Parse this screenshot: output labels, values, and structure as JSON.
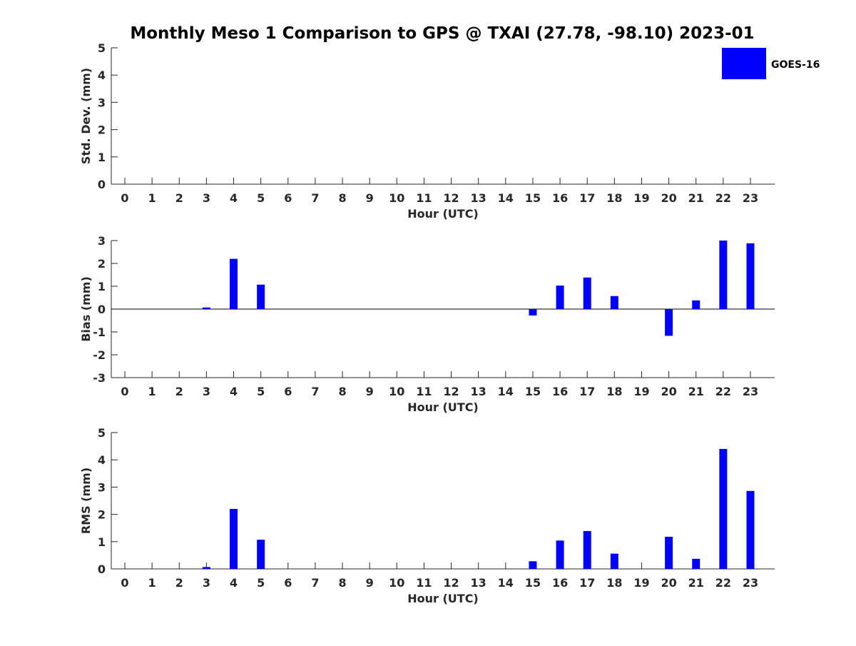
{
  "title": "Monthly Meso 1 Comparison to GPS @ TXAI (27.78, -98.10) 2023-01",
  "colors": {
    "bar": "#0000ff",
    "axis": "#262626",
    "background": "#ffffff"
  },
  "legend": {
    "label": "GOES-16",
    "placement": "top-right"
  },
  "chart_data": [
    {
      "type": "bar",
      "xlabel": "Hour (UTC)",
      "ylabel": "Std. Dev. (mm)",
      "categories": [
        "0",
        "1",
        "2",
        "3",
        "4",
        "5",
        "6",
        "7",
        "8",
        "9",
        "10",
        "11",
        "12",
        "13",
        "14",
        "15",
        "16",
        "17",
        "18",
        "19",
        "20",
        "21",
        "22",
        "23"
      ],
      "ylim": [
        0,
        5
      ],
      "yticks": [
        "0",
        "1",
        "2",
        "3",
        "4",
        "5"
      ],
      "grid": false,
      "series": [
        {
          "name": "GOES-16",
          "values": [
            null,
            null,
            null,
            null,
            null,
            null,
            null,
            null,
            null,
            null,
            null,
            null,
            null,
            null,
            null,
            null,
            null,
            null,
            null,
            null,
            null,
            null,
            null,
            null
          ]
        }
      ]
    },
    {
      "type": "bar",
      "xlabel": "Hour (UTC)",
      "ylabel": "Bias (mm)",
      "categories": [
        "0",
        "1",
        "2",
        "3",
        "4",
        "5",
        "6",
        "7",
        "8",
        "9",
        "10",
        "11",
        "12",
        "13",
        "14",
        "15",
        "16",
        "17",
        "18",
        "19",
        "20",
        "21",
        "22",
        "23"
      ],
      "ylim": [
        -3,
        3
      ],
      "yticks": [
        "-3",
        "-2",
        "-1",
        "0",
        "1",
        "2",
        "3"
      ],
      "grid": false,
      "zero_line": true,
      "series": [
        {
          "name": "GOES-16",
          "values": [
            null,
            null,
            null,
            0.07,
            2.2,
            1.07,
            null,
            null,
            null,
            null,
            null,
            null,
            null,
            null,
            null,
            -0.28,
            1.03,
            1.38,
            0.57,
            null,
            -1.17,
            0.38,
            3.0,
            2.88
          ]
        }
      ]
    },
    {
      "type": "bar",
      "xlabel": "Hour (UTC)",
      "ylabel": "RMS (mm)",
      "categories": [
        "0",
        "1",
        "2",
        "3",
        "4",
        "5",
        "6",
        "7",
        "8",
        "9",
        "10",
        "11",
        "12",
        "13",
        "14",
        "15",
        "16",
        "17",
        "18",
        "19",
        "20",
        "21",
        "22",
        "23"
      ],
      "ylim": [
        0,
        5
      ],
      "yticks": [
        "0",
        "1",
        "2",
        "3",
        "4",
        "5"
      ],
      "grid": false,
      "series": [
        {
          "name": "GOES-16",
          "values": [
            null,
            null,
            null,
            0.07,
            2.2,
            1.07,
            null,
            null,
            null,
            null,
            null,
            null,
            null,
            null,
            null,
            0.28,
            1.04,
            1.39,
            0.56,
            null,
            1.18,
            0.37,
            4.4,
            2.86
          ]
        }
      ]
    }
  ]
}
